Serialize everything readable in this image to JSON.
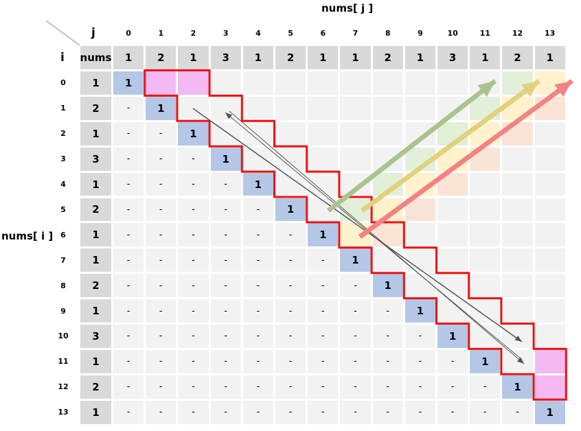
{
  "top_label": "nums[ j ]",
  "left_label": "nums[ i ]",
  "corner_j": "j",
  "corner_i": "i",
  "nums_header": "nums",
  "indices": [
    "0",
    "1",
    "2",
    "3",
    "4",
    "5",
    "6",
    "7",
    "8",
    "9",
    "10",
    "11",
    "12",
    "13"
  ],
  "nums": [
    "1",
    "2",
    "1",
    "3",
    "1",
    "2",
    "1",
    "1",
    "2",
    "1",
    "3",
    "1",
    "2",
    "1"
  ],
  "diag_value": "1",
  "below_value": "-",
  "colors": {
    "header": "#d9d9d9",
    "cell": "#f2f2f2",
    "diagonal": "#b4c7e7",
    "magenta": "#f4b8f2",
    "green_tint": "#e2efd9",
    "yellow_tint": "#fff2cc",
    "peach_tint": "#fbe3d6",
    "red_border": "#ee1111",
    "green_arrow": "#a9c58e",
    "yellow_arrow": "#e2d17c",
    "red_arrow": "#f48282",
    "gray_arrow": "#555555"
  }
}
